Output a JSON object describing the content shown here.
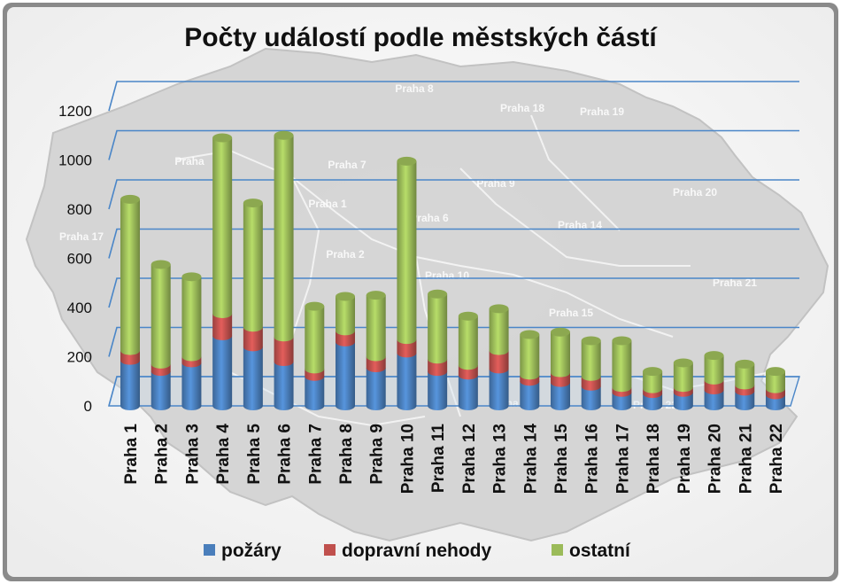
{
  "chart_data": {
    "type": "bar",
    "stacked": true,
    "title": "Počty událostí podle městských částí",
    "categories": [
      "Praha 1",
      "Praha 2",
      "Praha 3",
      "Praha 4",
      "Praha 5",
      "Praha 6",
      "Praha 7",
      "Praha 8",
      "Praha 9",
      "Praha 10",
      "Praha 11",
      "Praha 12",
      "Praha 13",
      "Praha 14",
      "Praha 15",
      "Praha 16",
      "Praha 17",
      "Praha 18",
      "Praha 19",
      "Praha 20",
      "Praha 21",
      "Praha 22"
    ],
    "series": [
      {
        "name": "požáry",
        "color": "#4a7ebb",
        "values": [
          185,
          140,
          175,
          285,
          240,
          180,
          120,
          260,
          155,
          215,
          140,
          125,
          150,
          100,
          95,
          80,
          55,
          50,
          55,
          65,
          60,
          45
        ]
      },
      {
        "name": "dopravní nehody",
        "color": "#c0504d",
        "values": [
          40,
          30,
          25,
          90,
          80,
          100,
          30,
          45,
          45,
          55,
          50,
          40,
          75,
          25,
          40,
          40,
          20,
          20,
          20,
          40,
          25,
          25
        ]
      },
      {
        "name": "ostatní",
        "color": "#9bbb59",
        "values": [
          615,
          405,
          325,
          715,
          505,
          820,
          255,
          140,
          250,
          725,
          265,
          200,
          170,
          165,
          165,
          145,
          190,
          70,
          100,
          100,
          85,
          70
        ]
      }
    ],
    "yticks": [
      0,
      200,
      400,
      600,
      800,
      1000,
      1200
    ],
    "ylim": [
      0,
      1200
    ],
    "legend_position": "bottom",
    "grid": true
  },
  "background_map_labels": [
    "Praha 8",
    "Praha 18",
    "Praha 19",
    "Praha",
    "Praha 7",
    "Praha 9",
    "Praha 20",
    "Praha 1",
    "Praha 6",
    "Praha 14",
    "Praha 17",
    "Praha 2",
    "Praha 10",
    "Praha 21",
    "Praha 15",
    "Praha 11",
    "Praha 22"
  ],
  "colors": {
    "frame_outer": "#6b6b6b",
    "map_fill": "#d9d9d9",
    "gridline": "#4a86c8"
  }
}
